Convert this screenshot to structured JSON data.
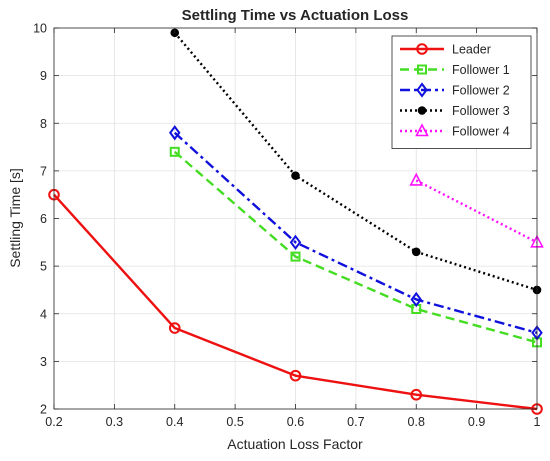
{
  "chart_data": {
    "type": "line",
    "title": "Settling Time vs Actuation Loss",
    "xlabel": "Actuation Loss Factor",
    "ylabel": "Settling Time [s]",
    "xlim": [
      0.2,
      1.0
    ],
    "ylim": [
      2,
      10
    ],
    "xticks": [
      0.2,
      0.3,
      0.4,
      0.5,
      0.6,
      0.7,
      0.8,
      0.9,
      1.0
    ],
    "xtick_labels": [
      "0.2",
      "0.3",
      "0.4",
      "0.5",
      "0.6",
      "0.7",
      "0.8",
      "0.9",
      "1"
    ],
    "yticks": [
      2,
      3,
      4,
      5,
      6,
      7,
      8,
      9,
      10
    ],
    "ytick_labels": [
      "2",
      "3",
      "4",
      "5",
      "6",
      "7",
      "8",
      "9",
      "10"
    ],
    "grid": true,
    "legend_position": "top-right",
    "series": [
      {
        "name": "Leader",
        "color": "#ee1111",
        "dash": "solid",
        "marker": "circle",
        "x": [
          0.2,
          0.4,
          0.6,
          0.8,
          1.0
        ],
        "y": [
          6.5,
          3.7,
          2.7,
          2.3,
          2.0
        ]
      },
      {
        "name": "Follower 1",
        "color": "#44dd22",
        "dash": "dashed",
        "marker": "square",
        "x": [
          0.4,
          0.6,
          0.8,
          1.0
        ],
        "y": [
          7.4,
          5.2,
          4.1,
          3.4
        ]
      },
      {
        "name": "Follower 2",
        "color": "#1111dd",
        "dash": "dashdot",
        "marker": "diamond",
        "x": [
          0.4,
          0.6,
          0.8,
          1.0
        ],
        "y": [
          7.8,
          5.5,
          4.3,
          3.6
        ]
      },
      {
        "name": "Follower 3",
        "color": "#000000",
        "dash": "dotted",
        "marker": "dot",
        "x": [
          0.4,
          0.6,
          0.8,
          1.0
        ],
        "y": [
          9.9,
          6.9,
          5.3,
          4.5
        ]
      },
      {
        "name": "Follower 4",
        "color": "#ff11ff",
        "dash": "dotted",
        "marker": "triangle",
        "x": [
          0.8,
          1.0
        ],
        "y": [
          6.8,
          5.5
        ]
      }
    ]
  }
}
